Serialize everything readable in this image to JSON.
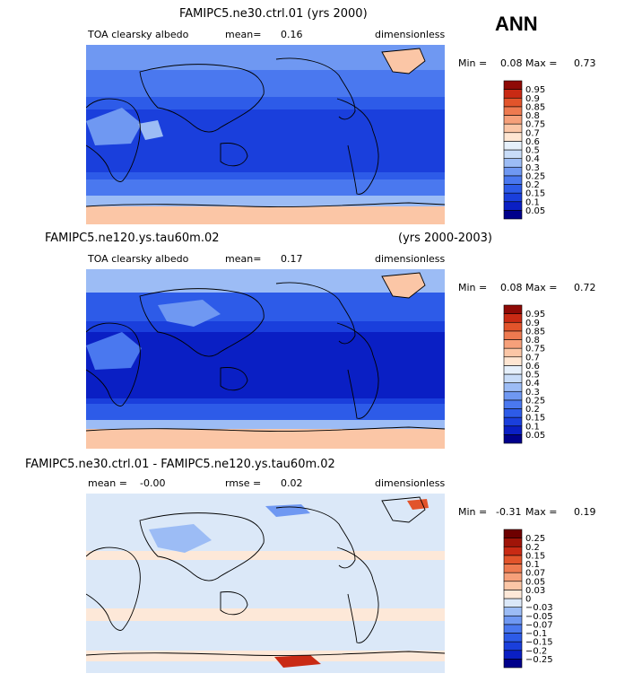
{
  "season": "ANN",
  "panels": [
    {
      "title": "FAMIPC5.ne30.ctrl.01 (yrs 2000)",
      "title_right": "",
      "left_label": "TOA clearsky albedo",
      "mean_label": "mean=",
      "mean_value": "0.16",
      "rmse_label": "",
      "rmse_value": "",
      "units": "dimensionless",
      "min_label": "Min =",
      "min_value": "0.08",
      "max_label": "Max =",
      "max_value": "0.73"
    },
    {
      "title": "FAMIPC5.ne120.ys.tau60m.02",
      "title_right": "(yrs 2000-2003)",
      "left_label": "TOA clearsky albedo",
      "mean_label": "mean=",
      "mean_value": "0.17",
      "rmse_label": "",
      "rmse_value": "",
      "units": "dimensionless",
      "min_label": "Min =",
      "min_value": "0.08",
      "max_label": "Max =",
      "max_value": "0.72"
    },
    {
      "title": "FAMIPC5.ne30.ctrl.01 - FAMIPC5.ne120.ys.tau60m.02",
      "title_right": "",
      "left_label": "",
      "mean_label": "mean =",
      "mean_value": "-0.00",
      "rmse_label": "rmse =",
      "rmse_value": "0.02",
      "units": "dimensionless",
      "min_label": "Min =",
      "min_value": "-0.31",
      "max_label": "Max =",
      "max_value": "0.19"
    }
  ],
  "chart_data": [
    {
      "type": "heatmap",
      "title": "FAMIPC5.ne30.ctrl.01 (yrs 2000)",
      "variable": "TOA clearsky albedo",
      "units": "dimensionless",
      "mean": 0.16,
      "min": 0.08,
      "max": 0.73,
      "colorbar": {
        "levels": [
          "0.05",
          "0.1",
          "0.15",
          "0.2",
          "0.25",
          "0.3",
          "0.4",
          "0.5",
          "0.6",
          "0.7",
          "0.75",
          "0.8",
          "0.85",
          "0.9",
          "0.95"
        ],
        "colors": [
          "#00008b",
          "#0a1fc4",
          "#1a3fdc",
          "#2d5be8",
          "#4a78ef",
          "#6f98f2",
          "#9cbcf5",
          "#c8dcf8",
          "#e6f0fb",
          "#ffe6d2",
          "#fbc6a6",
          "#f6a07a",
          "#ee7a50",
          "#e2542b",
          "#c92a14",
          "#8f0a06"
        ]
      },
      "description_zones": [
        "deep blue tropical oceans",
        "light blue mid-latitude oceans",
        "salmon Antarctica and Greenland",
        "light Sahara/Arabia deserts"
      ]
    },
    {
      "type": "heatmap",
      "title": "FAMIPC5.ne120.ys.tau60m.02",
      "variable": "TOA clearsky albedo",
      "units": "dimensionless",
      "mean": 0.17,
      "min": 0.08,
      "max": 0.72,
      "colorbar": {
        "levels": [
          "0.05",
          "0.1",
          "0.15",
          "0.2",
          "0.25",
          "0.3",
          "0.4",
          "0.5",
          "0.6",
          "0.7",
          "0.75",
          "0.8",
          "0.85",
          "0.9",
          "0.95"
        ],
        "colors": [
          "#00008b",
          "#0a1fc4",
          "#1a3fdc",
          "#2d5be8",
          "#4a78ef",
          "#6f98f2",
          "#9cbcf5",
          "#c8dcf8",
          "#e6f0fb",
          "#ffe6d2",
          "#fbc6a6",
          "#f6a07a",
          "#ee7a50",
          "#e2542b",
          "#c92a14",
          "#8f0a06"
        ]
      }
    },
    {
      "type": "heatmap",
      "title": "FAMIPC5.ne30.ctrl.01 - FAMIPC5.ne120.ys.tau60m.02",
      "units": "dimensionless",
      "mean": -0.0,
      "rmse": 0.02,
      "min": -0.31,
      "max": 0.19,
      "colorbar": {
        "levels": [
          "-0.25",
          "-0.2",
          "-0.15",
          "-0.1",
          "-0.07",
          "-0.05",
          "-0.03",
          "0",
          "0.03",
          "0.05",
          "0.07",
          "0.1",
          "0.15",
          "0.2",
          "0.25"
        ],
        "colors": [
          "#00008b",
          "#0a1fc4",
          "#1a3fdc",
          "#2d5be8",
          "#4a78ef",
          "#6f98f2",
          "#9cbcf5",
          "#dbe8f8",
          "#fde8d8",
          "#fbc6a6",
          "#f6a07a",
          "#ee7a50",
          "#e2542b",
          "#c92a14",
          "#a01408",
          "#6e0000"
        ]
      }
    }
  ]
}
